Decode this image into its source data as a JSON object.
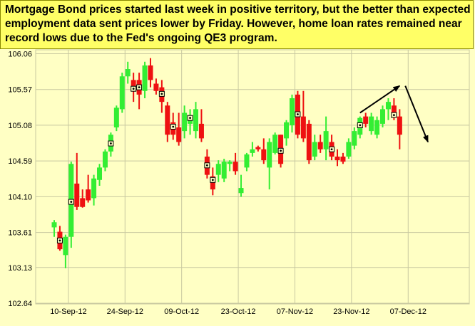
{
  "caption": "Mortgage Bond prices started last week in positive territory, but the better than expected employment data sent prices lower by Friday.  However, home loan rates remained near record lows due to the Fed's ongoing QE3 program.",
  "colors": {
    "up": "#33ee33",
    "down": "#ee1111",
    "background": "#ffffc4",
    "caption_bg": "#ffff66",
    "grid": "#c8c8a0",
    "axis_text": "#000000"
  },
  "chart_data": {
    "type": "candlestick",
    "title": "",
    "xlabel": "",
    "ylabel": "",
    "ylim": [
      102.64,
      106.06
    ],
    "y_ticks": [
      "106.06",
      "105.57",
      "105.08",
      "104.59",
      "104.10",
      "103.61",
      "103.13",
      "102.64"
    ],
    "x_ticks": [
      {
        "label": "10-Sep-12",
        "index": 2
      },
      {
        "label": "24-Sep-12",
        "index": 12
      },
      {
        "label": "09-Oct-12",
        "index": 22
      },
      {
        "label": "23-Oct-12",
        "index": 32
      },
      {
        "label": "07-Nov-12",
        "index": 42
      },
      {
        "label": "23-Nov-12",
        "index": 52
      },
      {
        "label": "07-Dec-12",
        "index": 62
      }
    ],
    "grid": true,
    "candles": [
      {
        "o": 103.68,
        "h": 103.78,
        "l": 103.55,
        "c": 103.75
      },
      {
        "o": 103.62,
        "h": 103.7,
        "l": 103.36,
        "c": 103.38,
        "marker": 103.5
      },
      {
        "o": 103.3,
        "h": 103.58,
        "l": 103.12,
        "c": 103.55
      },
      {
        "o": 103.55,
        "h": 104.58,
        "l": 103.4,
        "c": 104.55,
        "marker": 104.03
      },
      {
        "o": 104.28,
        "h": 104.7,
        "l": 103.92,
        "c": 103.96
      },
      {
        "o": 104.08,
        "h": 104.2,
        "l": 103.95,
        "c": 103.96
      },
      {
        "o": 104.2,
        "h": 104.4,
        "l": 104.02,
        "c": 104.05
      },
      {
        "o": 104.08,
        "h": 104.4,
        "l": 103.98,
        "c": 104.35
      },
      {
        "o": 104.33,
        "h": 104.55,
        "l": 104.25,
        "c": 104.5
      },
      {
        "o": 104.5,
        "h": 104.75,
        "l": 104.45,
        "c": 104.72
      },
      {
        "o": 104.72,
        "h": 104.98,
        "l": 104.65,
        "c": 104.95,
        "marker": 104.83
      },
      {
        "o": 105.05,
        "h": 105.35,
        "l": 105.0,
        "c": 105.32
      },
      {
        "o": 105.3,
        "h": 105.8,
        "l": 105.25,
        "c": 105.75
      },
      {
        "o": 105.75,
        "h": 105.95,
        "l": 105.65,
        "c": 105.85
      },
      {
        "o": 105.7,
        "h": 105.8,
        "l": 105.4,
        "c": 105.57,
        "marker": 105.58
      },
      {
        "o": 105.7,
        "h": 105.8,
        "l": 105.3,
        "c": 105.5,
        "marker": 105.6
      },
      {
        "o": 105.55,
        "h": 105.95,
        "l": 105.45,
        "c": 105.9
      },
      {
        "o": 105.9,
        "h": 106.0,
        "l": 105.6,
        "c": 105.7
      },
      {
        "o": 105.65,
        "h": 105.72,
        "l": 105.5,
        "c": 105.55
      },
      {
        "o": 105.6,
        "h": 105.7,
        "l": 105.25,
        "c": 105.4,
        "marker": 105.51
      },
      {
        "o": 105.35,
        "h": 105.4,
        "l": 104.85,
        "c": 104.95
      },
      {
        "o": 105.12,
        "h": 105.25,
        "l": 104.88,
        "c": 104.95,
        "marker": 105.06
      },
      {
        "o": 105.05,
        "h": 105.25,
        "l": 104.8,
        "c": 104.85
      },
      {
        "o": 105.0,
        "h": 105.35,
        "l": 104.9,
        "c": 105.25
      },
      {
        "o": 105.1,
        "h": 105.3,
        "l": 104.95,
        "c": 105.2,
        "marker": 105.18
      },
      {
        "o": 105.0,
        "h": 105.4,
        "l": 104.9,
        "c": 105.3
      },
      {
        "o": 105.1,
        "h": 105.3,
        "l": 104.85,
        "c": 104.9
      },
      {
        "o": 104.65,
        "h": 104.75,
        "l": 104.35,
        "c": 104.4,
        "marker": 104.53
      },
      {
        "o": 104.38,
        "h": 104.5,
        "l": 104.12,
        "c": 104.2,
        "marker": 104.33
      },
      {
        "o": 104.4,
        "h": 104.6,
        "l": 104.3,
        "c": 104.55
      },
      {
        "o": 104.35,
        "h": 104.62,
        "l": 104.3,
        "c": 104.58
      },
      {
        "o": 104.55,
        "h": 104.6,
        "l": 104.45,
        "c": 104.58
      },
      {
        "o": 104.58,
        "h": 104.7,
        "l": 104.4,
        "c": 104.45
      },
      {
        "o": 104.15,
        "h": 104.4,
        "l": 104.1,
        "c": 104.22
      },
      {
        "o": 104.5,
        "h": 104.7,
        "l": 104.45,
        "c": 104.68
      },
      {
        "o": 104.7,
        "h": 104.85,
        "l": 104.65,
        "c": 104.75
      },
      {
        "o": 104.78,
        "h": 104.8,
        "l": 104.72,
        "c": 104.75
      },
      {
        "o": 104.75,
        "h": 104.9,
        "l": 104.55,
        "c": 104.6
      },
      {
        "o": 104.5,
        "h": 104.9,
        "l": 104.2,
        "c": 104.85
      },
      {
        "o": 104.7,
        "h": 104.98,
        "l": 104.68,
        "c": 104.95
      },
      {
        "o": 104.95,
        "h": 104.95,
        "l": 104.5,
        "c": 104.55,
        "marker": 104.73
      },
      {
        "o": 104.9,
        "h": 105.15,
        "l": 104.8,
        "c": 105.12
      },
      {
        "o": 105.08,
        "h": 105.5,
        "l": 104.98,
        "c": 105.45
      },
      {
        "o": 105.5,
        "h": 105.55,
        "l": 104.9,
        "c": 104.95,
        "marker": 105.23
      },
      {
        "o": 105.2,
        "h": 105.55,
        "l": 104.85,
        "c": 104.9
      },
      {
        "o": 105.1,
        "h": 105.15,
        "l": 104.55,
        "c": 104.6
      },
      {
        "o": 104.65,
        "h": 104.95,
        "l": 104.6,
        "c": 104.85
      },
      {
        "o": 104.85,
        "h": 104.95,
        "l": 104.7,
        "c": 104.75
      },
      {
        "o": 104.75,
        "h": 105.2,
        "l": 104.6,
        "c": 105.0
      },
      {
        "o": 104.85,
        "h": 104.95,
        "l": 104.6,
        "c": 104.65,
        "marker": 104.75
      },
      {
        "o": 104.65,
        "h": 104.75,
        "l": 104.52,
        "c": 104.6
      },
      {
        "o": 104.65,
        "h": 104.7,
        "l": 104.55,
        "c": 104.58
      },
      {
        "o": 104.65,
        "h": 104.9,
        "l": 104.62,
        "c": 104.85
      },
      {
        "o": 104.8,
        "h": 105.05,
        "l": 104.75,
        "c": 105.0
      },
      {
        "o": 104.95,
        "h": 105.2,
        "l": 104.9,
        "c": 105.18,
        "marker": 105.08
      },
      {
        "o": 105.2,
        "h": 105.25,
        "l": 105.05,
        "c": 105.1
      },
      {
        "o": 105.0,
        "h": 105.25,
        "l": 104.95,
        "c": 105.2
      },
      {
        "o": 104.95,
        "h": 105.2,
        "l": 104.9,
        "c": 105.15
      },
      {
        "o": 105.1,
        "h": 105.35,
        "l": 105.05,
        "c": 105.3
      },
      {
        "o": 105.3,
        "h": 105.45,
        "l": 105.15,
        "c": 105.4
      },
      {
        "o": 105.35,
        "h": 105.45,
        "l": 105.15,
        "c": 105.2,
        "marker": 105.22
      },
      {
        "o": 105.2,
        "h": 105.3,
        "l": 104.75,
        "c": 104.95
      }
    ],
    "annotations": [
      {
        "type": "arrow",
        "from": {
          "index": 54,
          "value": 105.25
        },
        "to": {
          "index": 61,
          "value": 105.62
        }
      },
      {
        "type": "arrow",
        "from": {
          "index": 62,
          "value": 105.62
        },
        "to": {
          "index": 66,
          "value": 104.85
        }
      }
    ]
  }
}
